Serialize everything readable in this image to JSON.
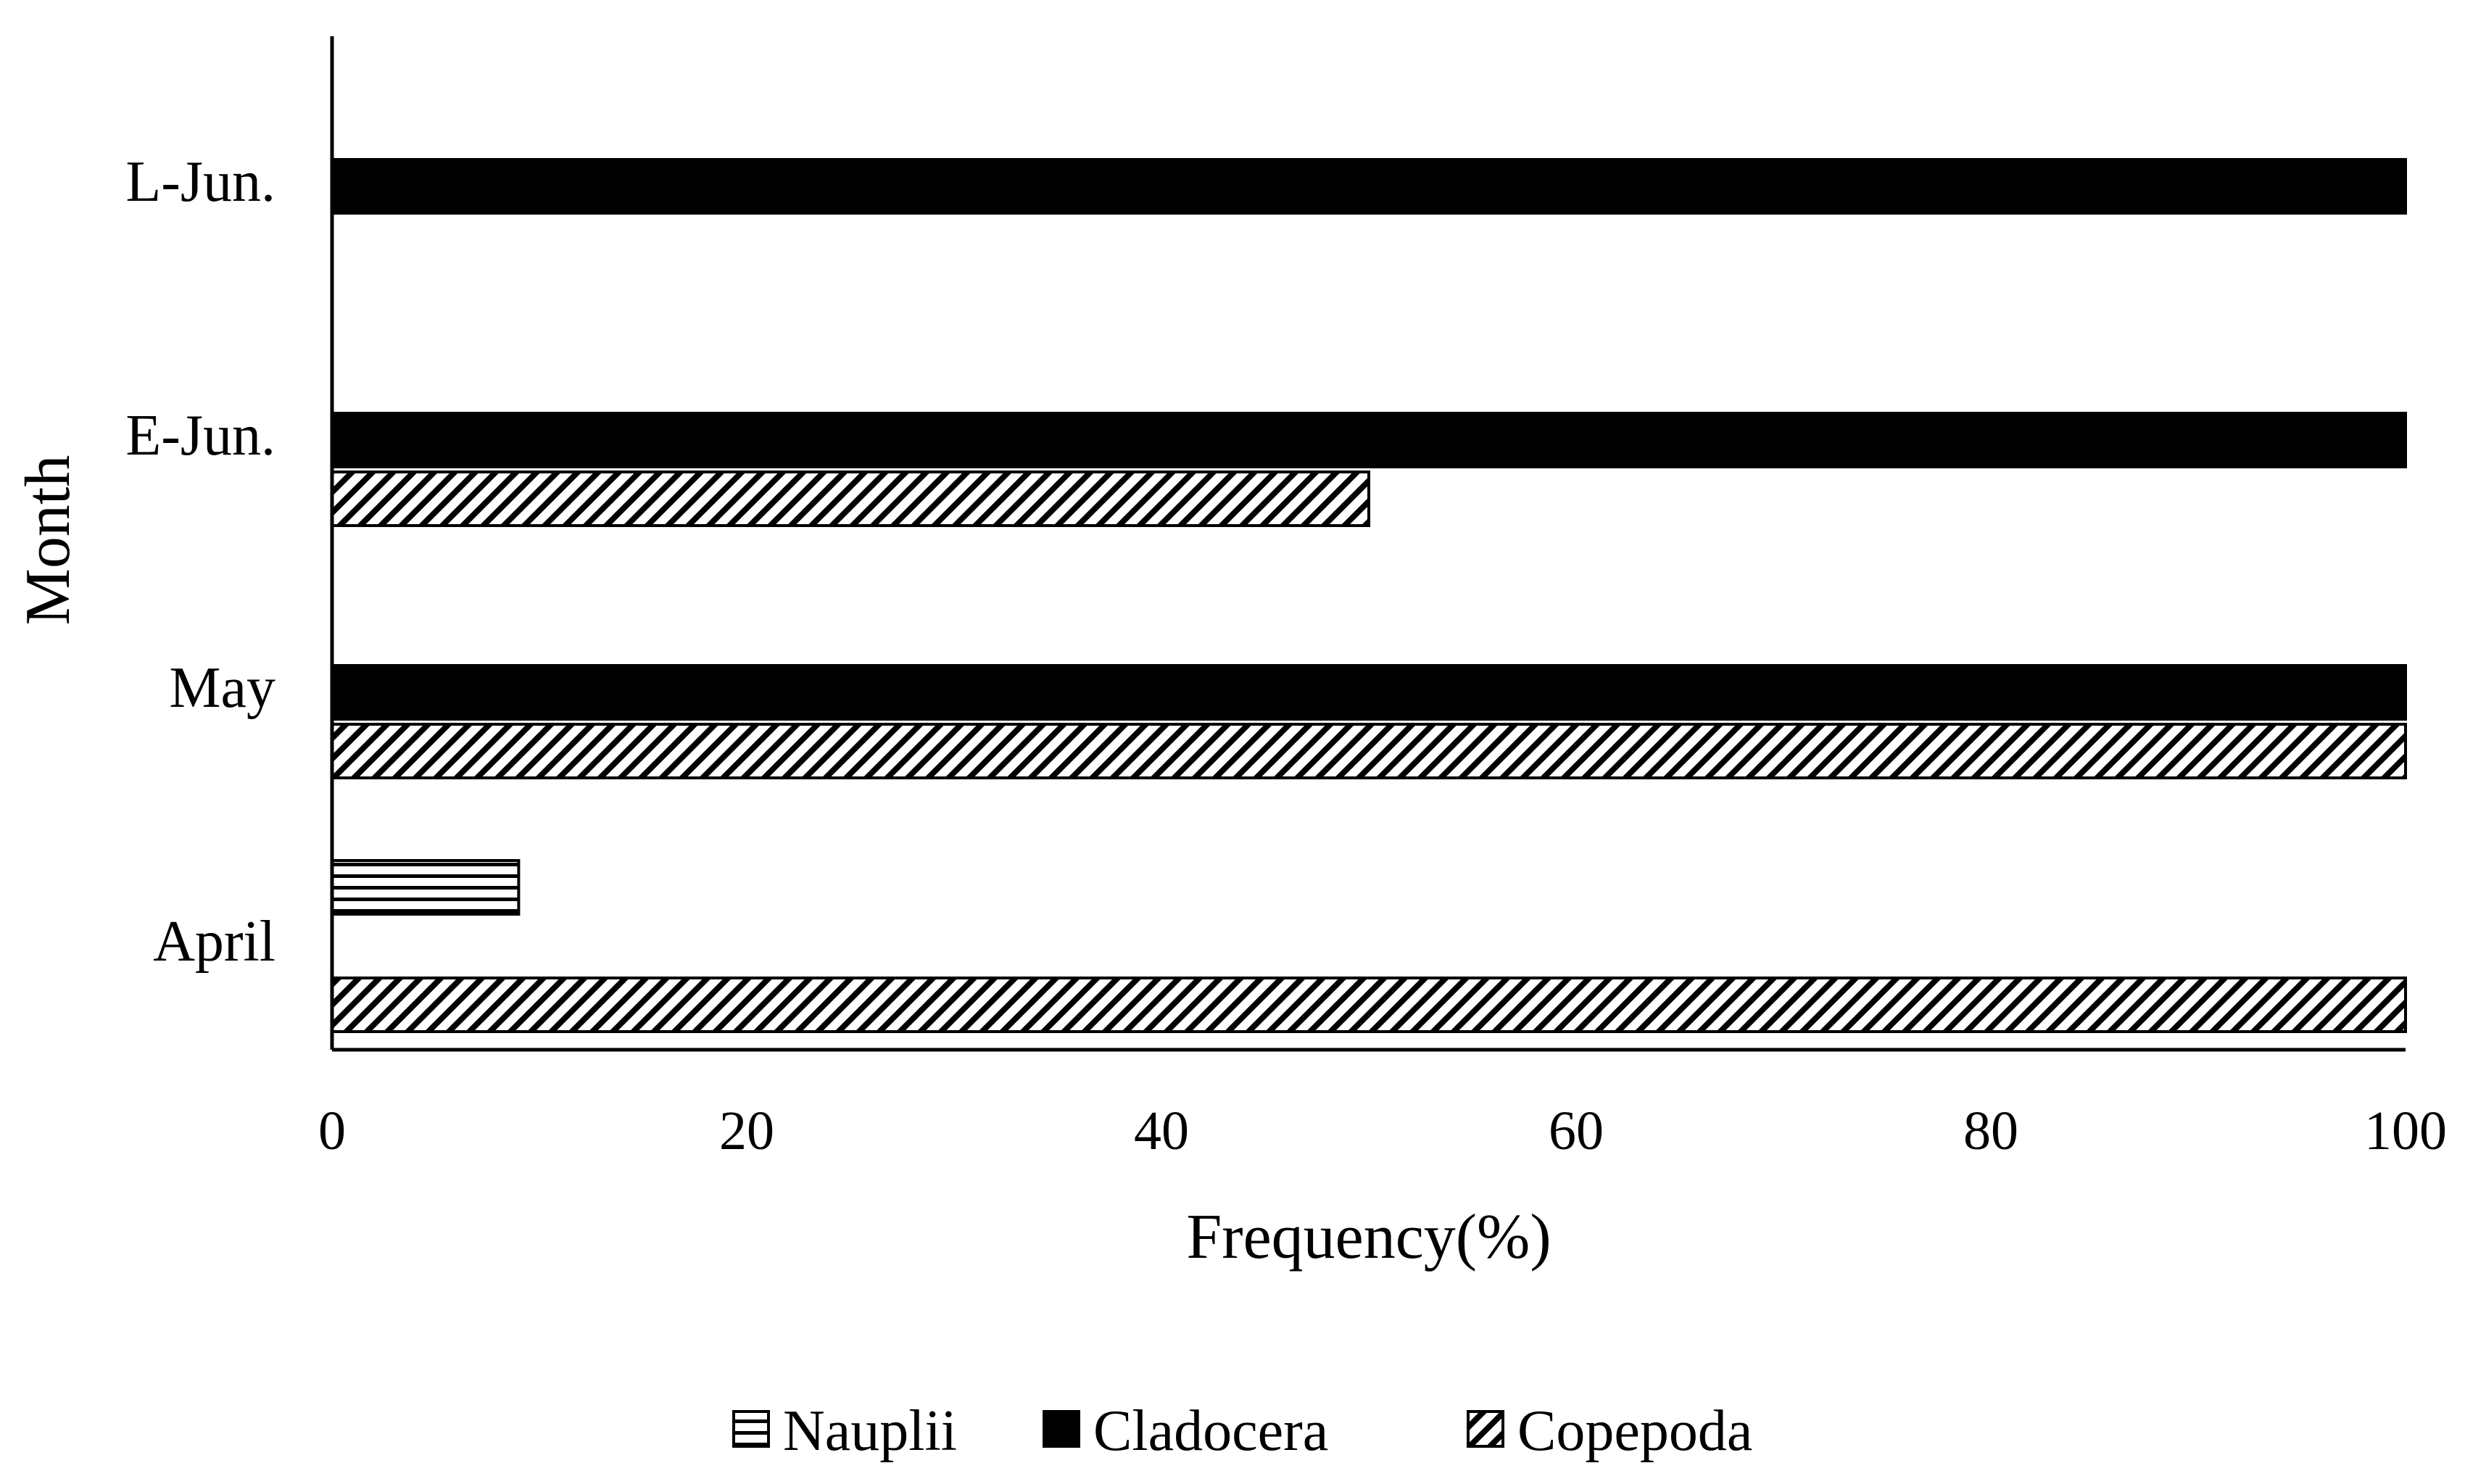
{
  "chart_data": {
    "type": "bar",
    "orientation": "horizontal",
    "categories": [
      "April",
      "May",
      "E-Jun.",
      "L-Jun."
    ],
    "series": [
      {
        "name": "Nauplii",
        "values": [
          9,
          0,
          0,
          0
        ],
        "pattern": "horizontal-lines",
        "color": "#000000"
      },
      {
        "name": "Cladocera",
        "values": [
          0,
          100,
          100,
          100
        ],
        "pattern": "solid",
        "color": "#000000"
      },
      {
        "name": "Copepoda",
        "values": [
          100,
          100,
          50,
          0
        ],
        "pattern": "diagonal-lines",
        "color": "#000000"
      }
    ],
    "xlabel": "Frequency(%)",
    "ylabel": "Month",
    "xlim": [
      0,
      100
    ],
    "xticks": [
      "0",
      "20",
      "40",
      "60",
      "80",
      "100"
    ],
    "grid": false,
    "legend_position": "bottom"
  }
}
